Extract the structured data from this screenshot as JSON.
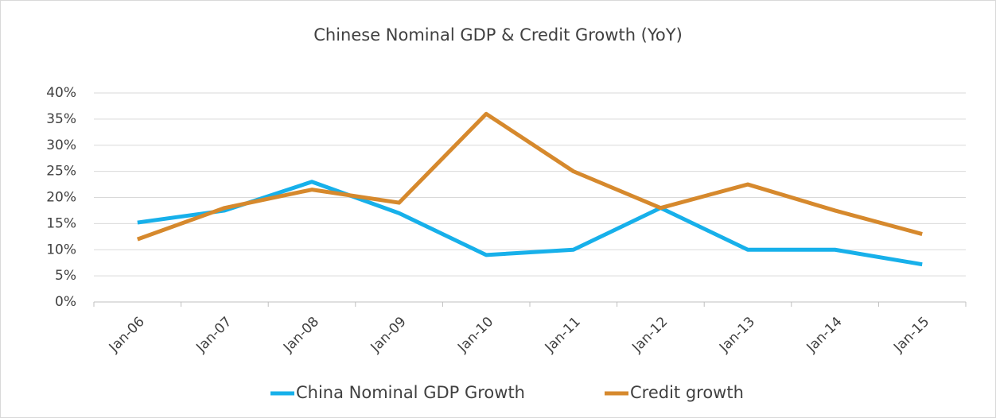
{
  "chart_data": {
    "type": "line",
    "title": "Chinese Nominal GDP & Credit Growth (YoY)",
    "categories": [
      "Jan-06",
      "Jan-07",
      "Jan-08",
      "Jan-09",
      "Jan-10",
      "Jan-11",
      "Jan-12",
      "Jan-13",
      "Jan-14",
      "Jan-15"
    ],
    "series": [
      {
        "name": "China Nominal GDP Growth",
        "color": "#17b0ea",
        "values": [
          15.2,
          17.5,
          23,
          17,
          9,
          10,
          18,
          10,
          10,
          7.2
        ]
      },
      {
        "name": "Credit growth",
        "color": "#d6892d",
        "values": [
          12,
          18,
          21.5,
          19,
          36,
          25,
          18,
          22.5,
          17.5,
          13
        ]
      }
    ],
    "ylim": [
      0,
      40
    ],
    "yticks": [
      {
        "value": 0,
        "label": "0%"
      },
      {
        "value": 5,
        "label": "5%"
      },
      {
        "value": 10,
        "label": "10%"
      },
      {
        "value": 15,
        "label": "15%"
      },
      {
        "value": 20,
        "label": "20%"
      },
      {
        "value": 25,
        "label": "25%"
      },
      {
        "value": 30,
        "label": "30%"
      },
      {
        "value": 35,
        "label": "35%"
      },
      {
        "value": 40,
        "label": "40%"
      }
    ],
    "grid": true,
    "legend": "bottom"
  }
}
